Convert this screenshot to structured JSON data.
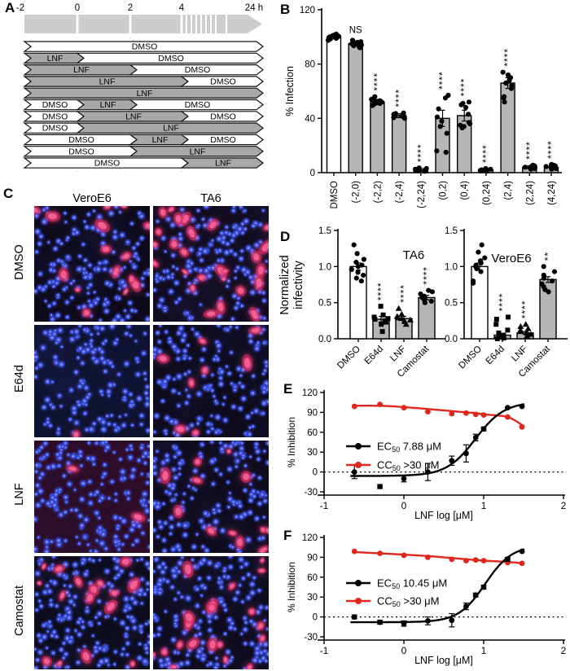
{
  "labels": {
    "a": "A",
    "b": "B",
    "c": "C",
    "d": "D",
    "e": "E",
    "f": "F"
  },
  "colors": {
    "bar_gray": "#b5b5b5",
    "vehicle_white": "#ffffff",
    "accent_red": "#e0261d",
    "timeline_gray": "#a8a8a8",
    "timeline_light": "#cdcdcd"
  },
  "panel_a": {
    "time_ticks": [
      "-2",
      "0",
      "2",
      "4",
      "24 h"
    ],
    "rows": [
      {
        "segments": [
          {
            "label": "DMSO",
            "start": -2,
            "end": 24,
            "style": "vehicle"
          }
        ]
      },
      {
        "segments": [
          {
            "label": "LNF",
            "start": -2,
            "end": 0,
            "style": "drug"
          },
          {
            "label": "DMSO",
            "start": 0,
            "end": 24,
            "style": "vehicle"
          }
        ]
      },
      {
        "segments": [
          {
            "label": "LNF",
            "start": -2,
            "end": 2,
            "style": "drug"
          },
          {
            "label": "DMSO",
            "start": 2,
            "end": 24,
            "style": "vehicle"
          }
        ]
      },
      {
        "segments": [
          {
            "label": "LNF",
            "start": -2,
            "end": 4,
            "style": "drug"
          },
          {
            "label": "DMSO",
            "start": 4,
            "end": 24,
            "style": "vehicle"
          }
        ]
      },
      {
        "segments": [
          {
            "label": "LNF",
            "start": -2,
            "end": 24,
            "style": "drug"
          }
        ]
      },
      {
        "segments": [
          {
            "label": "DMSO",
            "start": -2,
            "end": 0,
            "style": "vehicle"
          },
          {
            "label": "LNF",
            "start": 0,
            "end": 2,
            "style": "drug"
          },
          {
            "label": "DMSO",
            "start": 2,
            "end": 24,
            "style": "vehicle"
          }
        ]
      },
      {
        "segments": [
          {
            "label": "DMSO",
            "start": -2,
            "end": 0,
            "style": "vehicle"
          },
          {
            "label": "LNF",
            "start": 0,
            "end": 4,
            "style": "drug"
          },
          {
            "label": "DMSO",
            "start": 4,
            "end": 24,
            "style": "vehicle"
          }
        ]
      },
      {
        "segments": [
          {
            "label": "DMSO",
            "start": -2,
            "end": 0,
            "style": "vehicle"
          },
          {
            "label": "LNF",
            "start": 0,
            "end": 24,
            "style": "drug"
          }
        ]
      },
      {
        "segments": [
          {
            "label": "DMSO",
            "start": -2,
            "end": 2,
            "style": "vehicle"
          },
          {
            "label": "LNF",
            "start": 2,
            "end": 4,
            "style": "drug"
          },
          {
            "label": "DMSO",
            "start": 4,
            "end": 24,
            "style": "vehicle"
          }
        ]
      },
      {
        "segments": [
          {
            "label": "DMSO",
            "start": -2,
            "end": 2,
            "style": "vehicle"
          },
          {
            "label": "LNF",
            "start": 2,
            "end": 24,
            "style": "drug"
          }
        ]
      },
      {
        "segments": [
          {
            "label": "DMSO",
            "start": -2,
            "end": 4,
            "style": "vehicle"
          },
          {
            "label": "LNF",
            "start": 4,
            "end": 24,
            "style": "drug"
          }
        ]
      }
    ]
  },
  "panel_c": {
    "col_headers": [
      "VeroE6",
      "TA6"
    ],
    "rows": [
      {
        "label": "DMSO",
        "cells": [
          {
            "col": "VeroE6",
            "nuclei": 165,
            "red_foci": 15,
            "bg": "#0e0a1c",
            "haze": null
          },
          {
            "col": "TA6",
            "nuclei": 165,
            "red_foci": 26,
            "bg": "#120c20",
            "haze": null
          }
        ]
      },
      {
        "label": "E64d",
        "cells": [
          {
            "col": "VeroE6",
            "nuclei": 150,
            "red_foci": 1,
            "bg": "#0b0c1e",
            "haze": "rgba(45,65,170,0.13)"
          },
          {
            "col": "TA6",
            "nuclei": 160,
            "red_foci": 8,
            "bg": "#0e0b1d",
            "haze": null
          }
        ]
      },
      {
        "label": "LNF",
        "cells": [
          {
            "col": "VeroE6",
            "nuclei": 185,
            "red_foci": 2,
            "bg": "#1b0a24",
            "haze": "rgba(120,20,60,0.20)"
          },
          {
            "col": "TA6",
            "nuclei": 160,
            "red_foci": 12,
            "bg": "#100b1e",
            "haze": null
          }
        ]
      },
      {
        "label": "Camostat",
        "cells": [
          {
            "col": "VeroE6",
            "nuclei": 190,
            "red_foci": 16,
            "bg": "#0d0c1e",
            "haze": null
          },
          {
            "col": "TA6",
            "nuclei": 180,
            "red_foci": 20,
            "bg": "#0f0c1f",
            "haze": null
          }
        ]
      }
    ]
  },
  "chart_data": [
    {
      "id": "B",
      "type": "bar",
      "ylabel": "% Infection",
      "ylim": [
        0,
        120
      ],
      "yticks": [
        0,
        40,
        80,
        120
      ],
      "categories": [
        "DMSO",
        "(-2,0)",
        "(-2,2)",
        "(-2,4)",
        "(-2,24)",
        "(0,2)",
        "(0,4)",
        "(0,24)",
        "(2,4)",
        "(2,24)",
        "(4,24)"
      ],
      "values": [
        100,
        95,
        52,
        42,
        2,
        40,
        42,
        2,
        66,
        4,
        4
      ],
      "errors": [
        1.5,
        1.5,
        2,
        1.5,
        1,
        6,
        4,
        1,
        4,
        1,
        1
      ],
      "significance": [
        "",
        "NS",
        "****",
        "****",
        "****",
        "****",
        "****",
        "****",
        "****",
        "****",
        "****"
      ],
      "bar_styles": [
        "vehicle",
        "drug",
        "drug",
        "drug",
        "drug",
        "drug",
        "drug",
        "drug",
        "drug",
        "drug",
        "drug"
      ],
      "points": [
        [
          97.5,
          98.5,
          99,
          99.5,
          100,
          100.5,
          101,
          101.5,
          102
        ],
        [
          92,
          93,
          93.5,
          94,
          94.5,
          95,
          95.5,
          96,
          96.5,
          97.5
        ],
        [
          49.5,
          50.5,
          51,
          51.5,
          52,
          52.5,
          53,
          54,
          56
        ],
        [
          40,
          40.5,
          41,
          41.5,
          42,
          42.5,
          43,
          43.5,
          44
        ],
        [
          1,
          1.5,
          2,
          2,
          2.5,
          2.5,
          3,
          3.5
        ],
        [
          15,
          16,
          29,
          34,
          38,
          41,
          47,
          55,
          57
        ],
        [
          33,
          34,
          35,
          36,
          37,
          43,
          48,
          50,
          51,
          52
        ],
        [
          1,
          1.5,
          2,
          2,
          2.5,
          3
        ],
        [
          52,
          55,
          56,
          62,
          64,
          66,
          68,
          70,
          72,
          74
        ],
        [
          2.5,
          3,
          3.5,
          4,
          4,
          4.5,
          5,
          5.5
        ],
        [
          2.5,
          3,
          3.5,
          4,
          4.5,
          5,
          5.5,
          6
        ]
      ]
    },
    {
      "id": "D-TA6",
      "type": "bar",
      "title": "TA6",
      "ylabel": "Normalized infectivity",
      "ylim": [
        0,
        1.5
      ],
      "yticks": [
        0,
        0.5,
        1,
        1.5
      ],
      "categories": [
        "DMSO",
        "E64d",
        "LNF",
        "Camostat"
      ],
      "values": [
        1.0,
        0.27,
        0.28,
        0.57
      ],
      "errors": [
        0.05,
        0.04,
        0.03,
        0.03
      ],
      "significance": [
        "",
        "****",
        "****",
        "****"
      ],
      "bar_styles": [
        "vehicle",
        "drug",
        "drug",
        "drug"
      ],
      "markers": [
        "circle",
        "square",
        "triangle",
        "circle"
      ],
      "points": [
        [
          0.8,
          0.84,
          0.88,
          0.92,
          0.96,
          1.0,
          1.02,
          1.06,
          1.1,
          1.18,
          1.3
        ],
        [
          0.1,
          0.2,
          0.23,
          0.25,
          0.27,
          0.28,
          0.3,
          0.33,
          0.45
        ],
        [
          0.2,
          0.24,
          0.26,
          0.28,
          0.29,
          0.31,
          0.34,
          0.42
        ],
        [
          0.5,
          0.52,
          0.54,
          0.56,
          0.57,
          0.59,
          0.62,
          0.65,
          0.67
        ]
      ]
    },
    {
      "id": "D-VeroE6",
      "type": "bar",
      "title": "VeroE6",
      "ylabel": "Normalized infectivity",
      "ylim": [
        0,
        1.5
      ],
      "yticks": [
        0,
        0.5,
        1,
        1.5
      ],
      "categories": [
        "DMSO",
        "E64d",
        "LNF",
        "Camostat"
      ],
      "values": [
        1.0,
        0.05,
        0.08,
        0.82
      ],
      "errors": [
        0.05,
        0.02,
        0.02,
        0.04
      ],
      "significance": [
        "",
        "****",
        "****",
        "**"
      ],
      "bar_styles": [
        "vehicle",
        "drug",
        "drug",
        "drug"
      ],
      "markers": [
        "circle",
        "square",
        "triangle",
        "circle"
      ],
      "points": [
        [
          0.77,
          0.8,
          0.93,
          0.97,
          1.0,
          1.02,
          1.05,
          1.08,
          1.12,
          1.2,
          1.3
        ],
        [
          0.0,
          0.01,
          0.02,
          0.03,
          0.05,
          0.08,
          0.12,
          0.2,
          0.27,
          0.3
        ],
        [
          0.04,
          0.06,
          0.08,
          0.1,
          0.12,
          0.14,
          0.17,
          0.2
        ],
        [
          0.65,
          0.68,
          0.72,
          0.76,
          0.8,
          0.84,
          0.88,
          0.93,
          1.0
        ]
      ]
    },
    {
      "id": "E",
      "type": "line",
      "xlabel": "LNF log [μM]",
      "ylabel": "% Inhibition",
      "xlim": [
        -1,
        2
      ],
      "ylim": [
        -30,
        120
      ],
      "xticks": [
        -1,
        0,
        1,
        2
      ],
      "yticks": [
        -30,
        0,
        30,
        60,
        90,
        120
      ],
      "zero_line": true,
      "series": [
        {
          "name_prefix": "EC",
          "name_sub": "50",
          "name_value": "7.88 μM",
          "color": "#000000",
          "x": [
            -0.62,
            -0.3,
            0,
            0.3,
            0.6,
            0.78,
            0.9,
            1.0,
            1.3,
            1.48
          ],
          "y": [
            0,
            -22,
            -10,
            0,
            17,
            28,
            52,
            65,
            97,
            99
          ],
          "err": [
            10,
            3,
            5,
            13,
            7,
            13,
            5,
            3,
            2,
            2
          ],
          "fit": {
            "kind": "sigmoid",
            "bottom": -6,
            "top": 106,
            "logx50": 0.897,
            "hill": 2.4
          }
        },
        {
          "name_prefix": "CC",
          "name_sub": "50",
          "name_value": ">30 μM",
          "color": "#e0261d",
          "x": [
            -0.62,
            -0.3,
            0,
            0.3,
            0.6,
            0.78,
            0.9,
            1.0,
            1.3,
            1.48
          ],
          "y": [
            99,
            102,
            97,
            91,
            88,
            89,
            87,
            86,
            83,
            68
          ],
          "err": null,
          "fit": {
            "kind": "spline",
            "y": [
              100,
              100,
              98,
              95,
              92,
              90,
              89,
              87,
              83,
              71
            ]
          }
        }
      ]
    },
    {
      "id": "F",
      "type": "line",
      "xlabel": "LNF log [μM]",
      "ylabel": "% Inhibition",
      "xlim": [
        -1,
        2
      ],
      "ylim": [
        -30,
        120
      ],
      "xticks": [
        -1,
        0,
        1,
        2
      ],
      "yticks": [
        -30,
        0,
        30,
        60,
        90,
        120
      ],
      "zero_line": true,
      "series": [
        {
          "name_prefix": "EC",
          "name_sub": "50",
          "name_value": "10.45 μM",
          "color": "#000000",
          "x": [
            -0.62,
            -0.3,
            0,
            0.3,
            0.6,
            0.78,
            0.9,
            1.0,
            1.3,
            1.48
          ],
          "y": [
            0,
            -8,
            -10,
            -6,
            -5,
            16,
            33,
            45,
            87,
            99
          ],
          "err": [
            3,
            3,
            4,
            6,
            10,
            5,
            3,
            3,
            3,
            2
          ],
          "fit": {
            "kind": "sigmoid",
            "bottom": -8,
            "top": 108,
            "logx50": 1.019,
            "hill": 2.6
          }
        },
        {
          "name_prefix": "CC",
          "name_sub": "50",
          "name_value": ">30 μM",
          "color": "#e0261d",
          "x": [
            -0.62,
            -0.3,
            0,
            0.3,
            0.6,
            0.78,
            0.9,
            1.0,
            1.3,
            1.48
          ],
          "y": [
            99,
            96,
            93,
            90,
            87,
            85,
            86,
            85,
            82,
            81
          ],
          "err": null,
          "fit": {
            "kind": "spline",
            "y": [
              98,
              96,
              94,
              92,
              89,
              87,
              86,
              85,
              83,
              81
            ]
          }
        }
      ]
    }
  ]
}
